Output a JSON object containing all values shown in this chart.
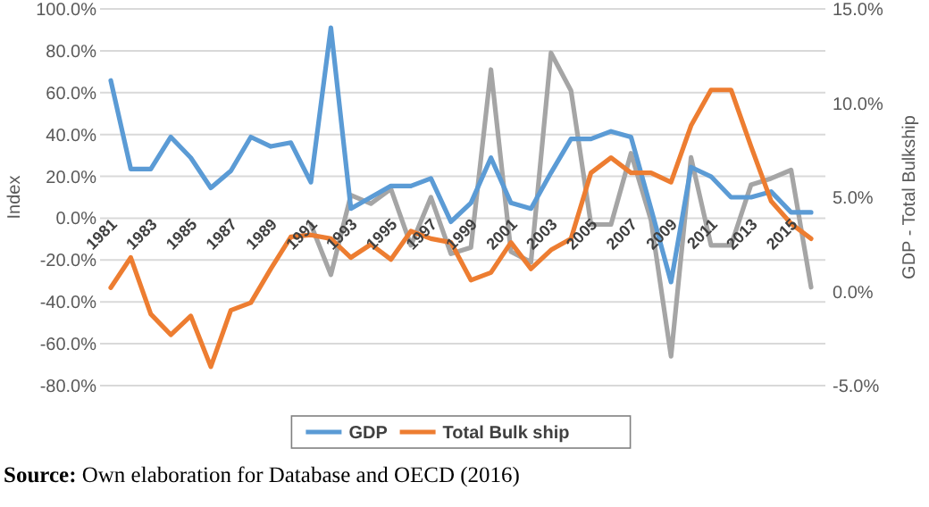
{
  "chart_data": {
    "type": "line",
    "ylabel": "Index",
    "y2label": "GDP - Total Bulkship",
    "categories": [
      "1981",
      null,
      "1983",
      null,
      "1985",
      null,
      "1987",
      null,
      "1989",
      null,
      "1991",
      null,
      "1993",
      null,
      "1995",
      null,
      "1997",
      null,
      "1999",
      null,
      "2001",
      null,
      "2003",
      null,
      "2005",
      null,
      "2007",
      null,
      "2009",
      null,
      "2011",
      null,
      "2013",
      null,
      "2015",
      null
    ],
    "series": [
      {
        "color": "#a5a5a5",
        "values": [
          null,
          null,
          null,
          null,
          null,
          null,
          null,
          null,
          null,
          null,
          -3,
          -27,
          11,
          7,
          14,
          -13,
          10,
          -17,
          -14,
          71,
          -16,
          -21,
          79,
          61,
          -3,
          -3,
          31,
          -1,
          -66,
          29,
          -13,
          -13,
          16,
          19,
          23,
          -33
        ]
      },
      {
        "name": "GDP",
        "color": "#5b9bd5",
        "axis": "y2",
        "values": [
          11.2,
          6.5,
          6.5,
          8.2,
          7.1,
          5.5,
          6.4,
          8.2,
          7.7,
          7.9,
          5.8,
          14.0,
          4.4,
          5.0,
          5.6,
          5.6,
          6.0,
          3.7,
          4.7,
          7.1,
          4.7,
          4.4,
          6.3,
          8.1,
          8.1,
          8.5,
          8.2,
          4.4,
          0.5,
          6.6,
          6.1,
          5.0,
          5.0,
          5.3,
          4.2,
          4.2
        ]
      },
      {
        "name": "Total Bulk ship",
        "color": "#ed7d31",
        "axis": "y2",
        "values": [
          0.2,
          1.8,
          -1.2,
          -2.3,
          -1.3,
          -4.0,
          -1.0,
          -0.6,
          1.2,
          2.9,
          3.0,
          2.8,
          1.8,
          2.5,
          1.7,
          3.2,
          2.8,
          2.6,
          0.6,
          1.0,
          2.6,
          1.2,
          2.2,
          2.8,
          6.3,
          7.1,
          6.3,
          6.3,
          5.8,
          8.8,
          10.7,
          10.7,
          7.7,
          4.8,
          3.6,
          2.8
        ]
      }
    ],
    "ylim": [
      -80,
      100
    ],
    "yticks": [
      {
        "value": -80,
        "label": "-80.0%"
      },
      {
        "value": -60,
        "label": "-60.0%"
      },
      {
        "value": -40,
        "label": "-40.0%"
      },
      {
        "value": -20,
        "label": "-20.0%"
      },
      {
        "value": 0,
        "label": "0.0%"
      },
      {
        "value": 20,
        "label": "20.0%"
      },
      {
        "value": 40,
        "label": "40.0%"
      },
      {
        "value": 60,
        "label": "60.0%"
      },
      {
        "value": 80,
        "label": "80.0%"
      },
      {
        "value": 100,
        "label": "100.0%"
      }
    ],
    "y2lim": [
      -5,
      15
    ],
    "y2ticks": [
      {
        "value": -5,
        "label": "-5.0%"
      },
      {
        "value": 0,
        "label": "0.0%"
      },
      {
        "value": 5,
        "label": "5.0%"
      },
      {
        "value": 10,
        "label": "10.0%"
      },
      {
        "value": 15,
        "label": "15.0%"
      }
    ],
    "grid": "y",
    "legend": "bottom",
    "marker": "none",
    "line_style": "solid",
    "annotations": [
      "Source: Own elaboration for Database and OECD (2016)"
    ]
  }
}
